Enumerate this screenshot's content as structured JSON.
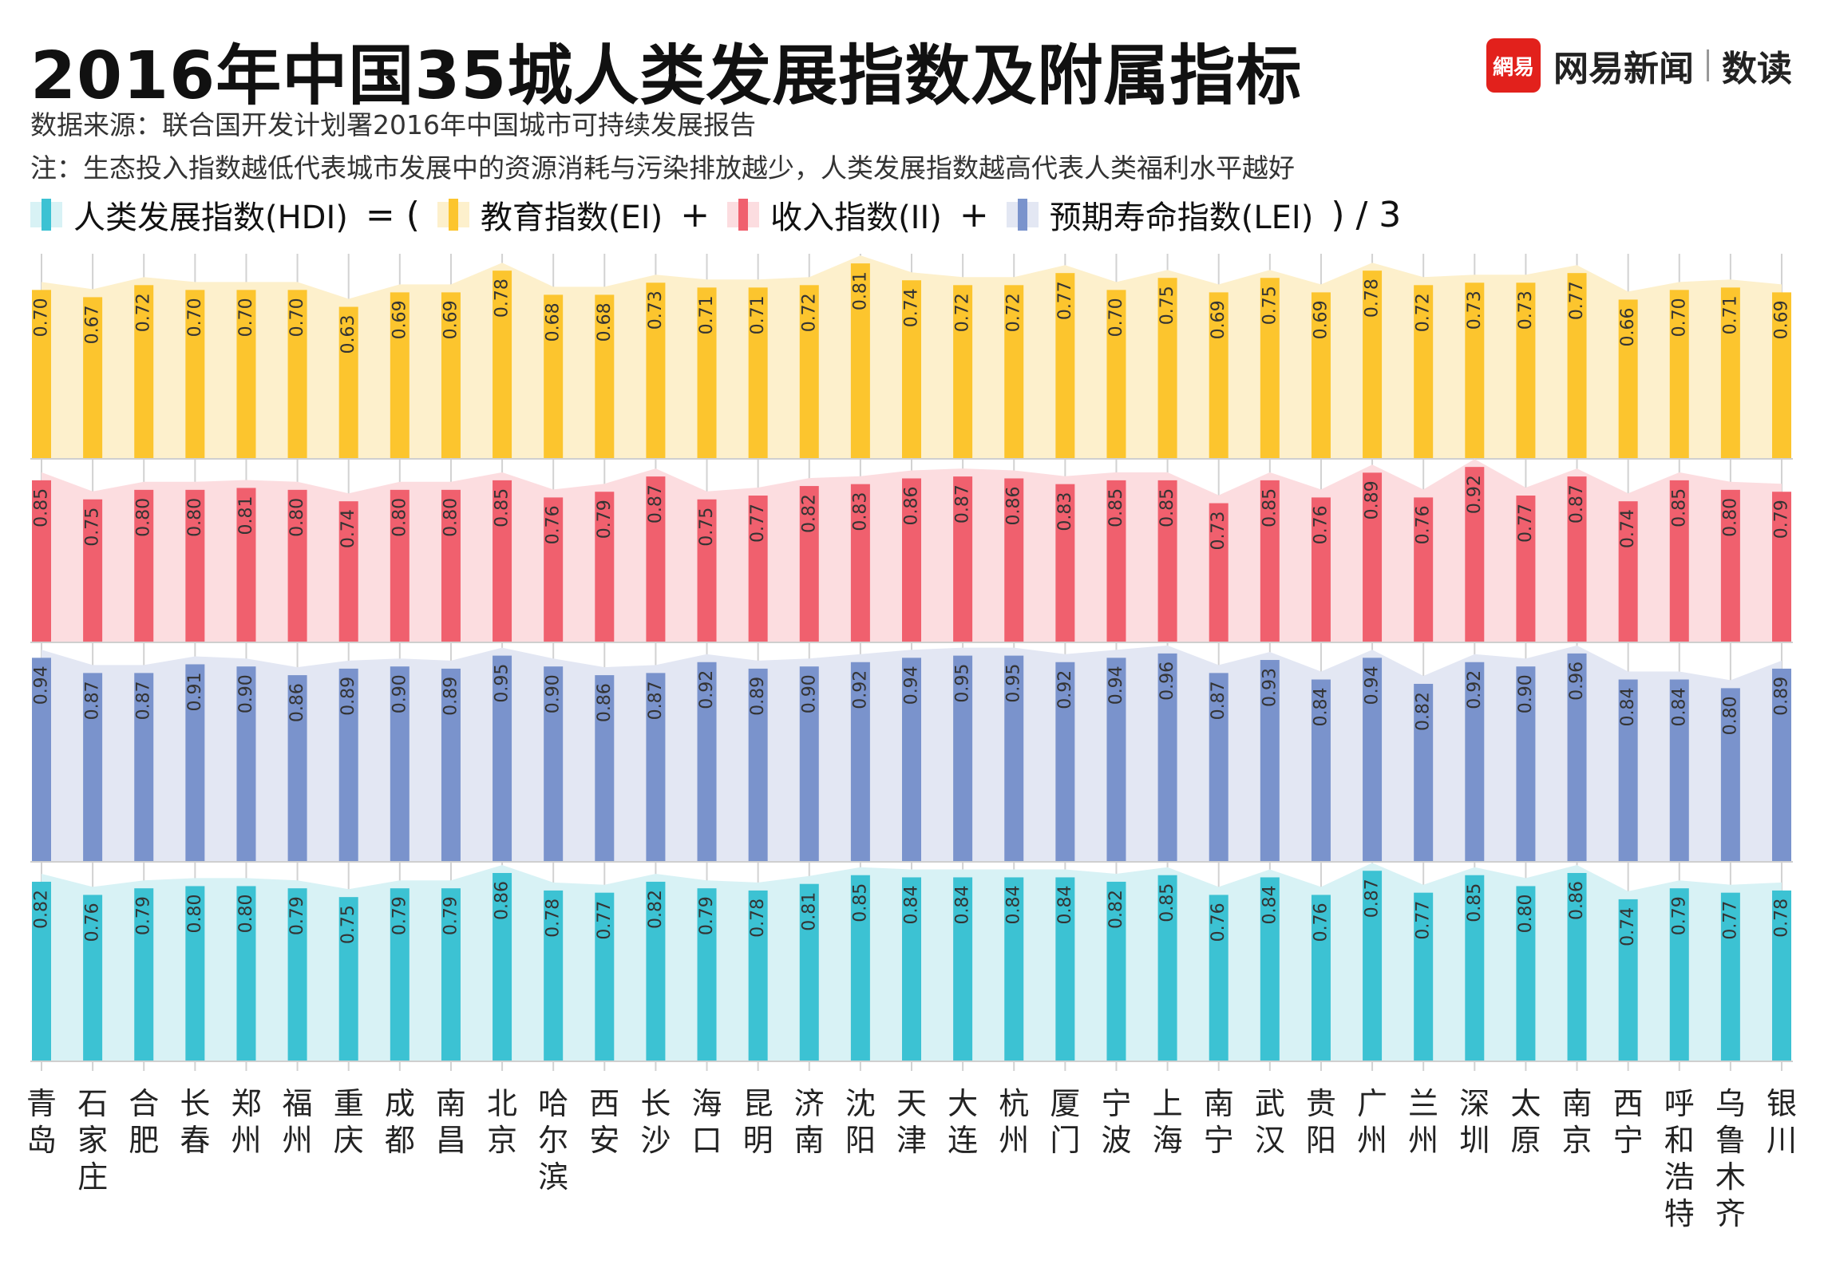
{
  "title": "2016年中国35城人类发展指数及附属指标",
  "source": "数据来源：联合国开发计划署2016年中国城市可持续发展报告",
  "note": "注：生态投入指数越低代表城市发展中的资源消耗与污染排放越少，人类发展指数越高代表人类福利水平越好",
  "brand": {
    "logo_text": "網易",
    "name": "网易新闻",
    "sub": "数读"
  },
  "legend": {
    "hdi": "人类发展指数(HDI)",
    "equals": "= (",
    "ei": "教育指数(EI)",
    "plus1": "+",
    "ii": "收入指数(II)",
    "plus2": "+",
    "lei": "预期寿命指数(LEI)",
    "close": ") / 3"
  },
  "colors": {
    "ei": "#FCC52E",
    "ei_bg": "#FDF0CC",
    "ii": "#F0606E",
    "ii_bg": "#FCDDE0",
    "lei": "#7A93CC",
    "lei_bg": "#E3E7F3",
    "hdi": "#3CC2D3",
    "hdi_bg": "#D8F2F5"
  },
  "chart_data": {
    "type": "bar",
    "categories": [
      "青岛",
      "石家庄",
      "合肥",
      "长春",
      "郑州",
      "福州",
      "重庆",
      "成都",
      "南昌",
      "北京",
      "哈尔滨",
      "西安",
      "长沙",
      "海口",
      "昆明",
      "济南",
      "沈阳",
      "天津",
      "大连",
      "杭州",
      "厦门",
      "宁波",
      "上海",
      "南宁",
      "武汉",
      "贵阳",
      "广州",
      "兰州",
      "深圳",
      "太原",
      "南京",
      "西宁",
      "呼和浩特",
      "乌鲁木齐",
      "银川"
    ],
    "series": [
      {
        "name": "教育指数(EI)",
        "key": "ei",
        "ylim": [
          0,
          0.85
        ],
        "values": [
          0.7,
          0.67,
          0.72,
          0.7,
          0.7,
          0.7,
          0.63,
          0.69,
          0.69,
          0.78,
          0.68,
          0.68,
          0.73,
          0.71,
          0.71,
          0.72,
          0.81,
          0.74,
          0.72,
          0.72,
          0.77,
          0.7,
          0.75,
          0.69,
          0.75,
          0.69,
          0.78,
          0.72,
          0.73,
          0.73,
          0.77,
          0.66,
          0.7,
          0.71,
          0.69
        ]
      },
      {
        "name": "收入指数(II)",
        "key": "ii",
        "ylim": [
          0,
          0.95
        ],
        "values": [
          0.85,
          0.75,
          0.8,
          0.8,
          0.81,
          0.8,
          0.74,
          0.8,
          0.8,
          0.85,
          0.76,
          0.79,
          0.87,
          0.75,
          0.77,
          0.82,
          0.83,
          0.86,
          0.87,
          0.86,
          0.83,
          0.85,
          0.85,
          0.73,
          0.85,
          0.76,
          0.89,
          0.76,
          0.92,
          0.77,
          0.87,
          0.74,
          0.85,
          0.8,
          0.79
        ]
      },
      {
        "name": "预期寿命指数(LEI)",
        "key": "lei",
        "ylim": [
          0,
          1.0
        ],
        "values": [
          0.94,
          0.87,
          0.87,
          0.91,
          0.9,
          0.86,
          0.89,
          0.9,
          0.89,
          0.95,
          0.9,
          0.86,
          0.87,
          0.92,
          0.89,
          0.9,
          0.92,
          0.94,
          0.95,
          0.95,
          0.92,
          0.94,
          0.96,
          0.87,
          0.93,
          0.84,
          0.94,
          0.82,
          0.92,
          0.9,
          0.96,
          0.84,
          0.84,
          0.8,
          0.89
        ]
      },
      {
        "name": "人类发展指数(HDI)",
        "key": "hdi",
        "ylim": [
          0,
          0.9
        ],
        "values": [
          0.82,
          0.76,
          0.79,
          0.8,
          0.8,
          0.79,
          0.75,
          0.79,
          0.79,
          0.86,
          0.78,
          0.77,
          0.82,
          0.79,
          0.78,
          0.81,
          0.85,
          0.84,
          0.84,
          0.84,
          0.84,
          0.82,
          0.85,
          0.76,
          0.84,
          0.76,
          0.87,
          0.77,
          0.85,
          0.8,
          0.86,
          0.74,
          0.79,
          0.77,
          0.78
        ]
      }
    ]
  }
}
